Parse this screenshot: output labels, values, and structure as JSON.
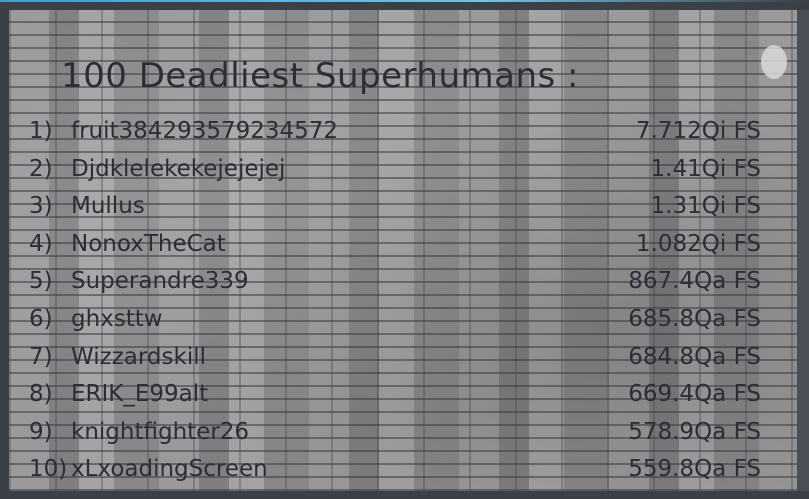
{
  "leaderboard": {
    "title": "100 Deadliest Superhumans :",
    "entries": [
      {
        "rank": "1)",
        "name": "fruit384293579234572",
        "score": "7.712Qi FS"
      },
      {
        "rank": "2)",
        "name": "Djdklelekekejejejej",
        "score": "1.41Qi FS"
      },
      {
        "rank": "3)",
        "name": "Mullus",
        "score": "1.31Qi FS"
      },
      {
        "rank": "4)",
        "name": "NonoxTheCat",
        "score": "1.082Qi FS"
      },
      {
        "rank": "5)",
        "name": "Superandre339",
        "score": "867.4Qa FS"
      },
      {
        "rank": "6)",
        "name": "ghxsttw",
        "score": "685.8Qa FS"
      },
      {
        "rank": "7)",
        "name": "Wizzardskill",
        "score": "684.8Qa FS"
      },
      {
        "rank": "8)",
        "name": "ERIK_E99alt",
        "score": "669.4Qa FS"
      },
      {
        "rank": "9)",
        "name": "knightfighter26",
        "score": "578.9Qa FS"
      },
      {
        "rank": "10)",
        "name": "xLxoadingScreen",
        "score": "559.8Qa FS"
      }
    ]
  },
  "colors": {
    "text": "#2b2e34",
    "frame": "#3b3f46",
    "brick": "#8d8d8f"
  }
}
